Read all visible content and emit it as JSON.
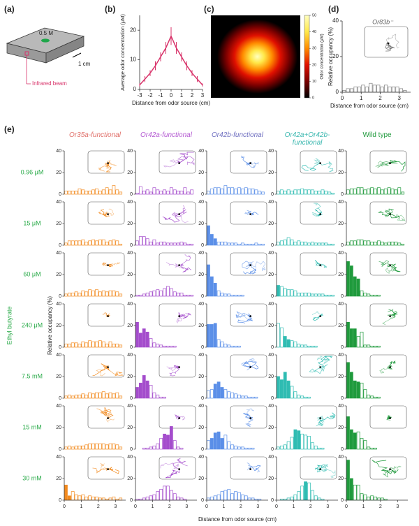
{
  "diagram": {
    "panel": "(a)",
    "spot_label": "0.5 M",
    "scale_label": "1 cm",
    "beam_label": "Infrared beam"
  },
  "chart_data": [
    {
      "type": "line",
      "panel": "(b)",
      "color": "#d8336a",
      "x": [
        -3,
        -2.5,
        -2,
        -1.5,
        -1,
        -0.5,
        0,
        0.5,
        1,
        1.5,
        2,
        2.5,
        3
      ],
      "values": [
        1.5,
        3.5,
        5.5,
        8,
        11,
        14,
        18,
        14,
        11,
        8,
        5.5,
        3.5,
        1.5
      ],
      "errors": [
        0.5,
        1,
        1,
        1.5,
        1.5,
        2,
        3,
        2,
        1.5,
        1.5,
        1,
        1,
        0.5
      ],
      "xlim": [
        -3,
        3
      ],
      "xticks": [
        -3,
        -2,
        -1,
        0,
        1,
        2,
        3
      ],
      "ylim": [
        0,
        25
      ],
      "yticks": [
        0,
        10,
        20
      ],
      "xlabel": "Distance from odor source (cm)",
      "ylabel": "Average odor concentration (μM)"
    },
    {
      "type": "heatmap",
      "panel": "(c)",
      "colors": [
        "#000000",
        "#7a0000",
        "#e01000",
        "#ff8c00",
        "#ffe84a",
        "#ffffc0"
      ],
      "zlim": [
        0,
        50
      ],
      "zticks": [
        0,
        10,
        20,
        30,
        40,
        50
      ],
      "colorbar_label": "Odor concentration (μM)"
    },
    {
      "type": "histogram",
      "panel": "(d)",
      "title": "Or83b⁻",
      "color": "#8c8c8c",
      "bins": [
        0,
        0.2,
        0.4,
        0.6,
        0.8,
        1,
        1.2,
        1.4,
        1.6,
        1.8,
        2,
        2.2,
        2.4,
        2.6,
        2.8,
        3,
        3.2,
        3.4
      ],
      "counts": [
        1,
        2,
        2,
        3,
        3,
        4,
        3,
        5,
        4,
        4,
        3,
        4,
        3,
        3,
        3,
        2,
        1
      ],
      "xlim": [
        0,
        3.6
      ],
      "xticks": [
        0,
        1,
        2,
        3
      ],
      "ylim": [
        0,
        40
      ],
      "yticks": [
        0,
        20,
        40
      ],
      "xlabel": "Distance from odor source (cm)",
      "ylabel": "Relative occupancy (%)"
    },
    {
      "type": "histogram-grid",
      "panel": "(e)",
      "group_label": "Ethyl butyrate",
      "label_color": "#2bab4a",
      "row_labels": [
        "0.96 μM",
        "15 μM",
        "60 μM",
        "240 μM",
        "7.5 mM",
        "15 mM",
        "30 mM"
      ],
      "bins": [
        0,
        0.2,
        0.4,
        0.6,
        0.8,
        1,
        1.2,
        1.4,
        1.6,
        1.8,
        2,
        2.2,
        2.4,
        2.6,
        2.8,
        3,
        3.2,
        3.4
      ],
      "xlim": [
        0,
        3.6
      ],
      "xticks": [
        0,
        1,
        2,
        3
      ],
      "ylim": [
        0,
        40
      ],
      "yticks": [
        0,
        20,
        40
      ],
      "xlabel": "Distance from odor source (cm)",
      "ylabel": "Relative occupancy (%)",
      "columns": [
        {
          "title": "Or35a-functional",
          "title_color": "#e0706a",
          "color": "#f28a1e",
          "counts": [
            [
              3,
              3,
              3,
              3,
              5,
              4,
              3,
              3,
              4,
              5,
              3,
              4,
              6,
              4,
              8,
              4,
              2
            ],
            [
              2,
              4,
              4,
              4,
              4,
              5,
              3,
              4,
              5,
              4,
              5,
              5,
              3,
              4,
              5,
              4,
              1
            ],
            [
              2,
              3,
              3,
              4,
              3,
              5,
              4,
              6,
              5,
              6,
              4,
              5,
              4,
              5,
              5,
              4,
              2
            ],
            [
              3,
              3,
              4,
              4,
              3,
              5,
              4,
              6,
              5,
              5,
              6,
              5,
              3,
              5,
              3,
              3,
              2
            ],
            [
              2,
              3,
              2,
              3,
              3,
              4,
              3,
              5,
              4,
              5,
              5,
              6,
              4,
              5,
              4,
              5,
              2
            ],
            [
              2,
              3,
              2,
              3,
              3,
              3,
              4,
              5,
              5,
              5,
              5,
              5,
              4,
              5,
              5,
              4,
              2
            ],
            [
              14,
              4,
              8,
              5,
              4,
              5,
              3,
              4,
              3,
              3,
              2,
              2,
              1,
              2,
              3,
              1,
              2
            ]
          ],
          "filled": [
            [],
            [],
            [],
            [],
            [],
            [],
            [
              0,
              1
            ]
          ]
        },
        {
          "title": "Or42a-functional",
          "title_color": "#b45ad2",
          "color": "#a44ccc",
          "counts": [
            [
              1,
              7,
              3,
              4,
              2,
              6,
              4,
              3,
              4,
              3,
              6,
              4,
              3,
              3,
              6,
              2,
              4
            ],
            [
              4,
              8,
              8,
              6,
              3,
              5,
              2,
              3,
              3,
              2,
              2,
              2,
              2,
              3,
              2,
              1,
              1
            ],
            [
              1,
              1,
              2,
              3,
              4,
              5,
              6,
              5,
              7,
              9,
              7,
              4,
              3,
              3,
              1,
              1,
              1
            ],
            [
              23,
              13,
              17,
              14,
              8,
              4,
              3,
              2,
              1,
              1,
              1,
              1,
              0,
              0,
              0,
              0,
              0
            ],
            [
              10,
              14,
              21,
              16,
              12,
              5,
              3,
              1,
              1,
              0,
              0,
              0,
              0,
              0,
              0,
              0,
              0
            ],
            [
              0,
              0,
              1,
              1,
              2,
              3,
              5,
              10,
              14,
              13,
              21,
              8,
              2,
              1,
              0,
              0,
              0
            ],
            [
              1,
              1,
              2,
              3,
              4,
              5,
              8,
              10,
              13,
              13,
              9,
              6,
              3,
              2,
              1,
              0,
              0
            ]
          ],
          "filled": [
            [],
            [],
            [],
            [
              0,
              1,
              2,
              3
            ],
            [
              0,
              1,
              2,
              3
            ],
            [
              8,
              9,
              10
            ],
            []
          ]
        },
        {
          "title": "Or42b-functional",
          "title_color": "#6f6fc0",
          "color": "#5b8fe8",
          "counts": [
            [
              3,
              5,
              6,
              6,
              5,
              8,
              6,
              6,
              5,
              6,
              5,
              6,
              5,
              5,
              4,
              3,
              2
            ],
            [
              18,
              10,
              6,
              3,
              3,
              3,
              2,
              2,
              2,
              1,
              2,
              1,
              1,
              1,
              2,
              1,
              1
            ],
            [
              29,
              18,
              12,
              5,
              3,
              2,
              2,
              1,
              1,
              1,
              1,
              0,
              0,
              0,
              0,
              0,
              0
            ],
            [
              21,
              21,
              22,
              7,
              5,
              3,
              2,
              1,
              1,
              1,
              0,
              0,
              0,
              0,
              0,
              0,
              0
            ],
            [
              7,
              8,
              13,
              15,
              10,
              8,
              6,
              5,
              4,
              3,
              2,
              2,
              1,
              1,
              1,
              0,
              0
            ],
            [
              8,
              10,
              15,
              16,
              10,
              13,
              7,
              4,
              3,
              2,
              2,
              1,
              1,
              1,
              0,
              0,
              0
            ],
            [
              2,
              3,
              4,
              5,
              8,
              9,
              10,
              6,
              8,
              7,
              5,
              4,
              2,
              2,
              1,
              1,
              0
            ]
          ],
          "filled": [
            [],
            [
              0,
              1,
              2
            ],
            [
              0,
              1,
              2
            ],
            [
              0,
              1,
              2
            ],
            [
              2,
              3,
              4
            ],
            [
              1,
              2,
              3,
              4
            ],
            []
          ]
        },
        {
          "title": "Or42a+Or42b-functional",
          "title_color": "#3cb8b0",
          "color": "#2fbcb2",
          "counts": [
            [
              3,
              4,
              3,
              4,
              3,
              4,
              4,
              5,
              4,
              4,
              4,
              3,
              3,
              4,
              3,
              2,
              1
            ],
            [
              3,
              4,
              5,
              7,
              5,
              3,
              4,
              3,
              3,
              2,
              3,
              2,
              2,
              2,
              2,
              1,
              1
            ],
            [
              10,
              9,
              7,
              6,
              6,
              5,
              3,
              3,
              3,
              3,
              2,
              2,
              2,
              2,
              1,
              1,
              1
            ],
            [
              22,
              18,
              10,
              7,
              6,
              5,
              3,
              2,
              2,
              1,
              1,
              1,
              0,
              0,
              0,
              0,
              0
            ],
            [
              20,
              17,
              24,
              16,
              11,
              6,
              3,
              2,
              1,
              1,
              0,
              0,
              0,
              0,
              0,
              0,
              0
            ],
            [
              2,
              3,
              4,
              7,
              11,
              18,
              17,
              14,
              13,
              12,
              6,
              3,
              1,
              1,
              0,
              0,
              0
            ],
            [
              0,
              1,
              1,
              2,
              3,
              5,
              8,
              13,
              17,
              16,
              9,
              4,
              2,
              1,
              0,
              0,
              0
            ]
          ],
          "filled": [
            [],
            [],
            [
              0
            ],
            [
              2,
              3
            ],
            [
              0,
              1,
              2,
              3
            ],
            [
              5,
              6
            ],
            [
              8
            ]
          ]
        },
        {
          "title": "Wild type",
          "title_color": "#1f9a3c",
          "color": "#1f9a3c",
          "counts": [
            [
              4,
              5,
              5,
              6,
              6,
              4,
              5,
              6,
              5,
              6,
              4,
              5,
              6,
              5,
              4,
              6,
              2
            ],
            [
              3,
              4,
              4,
              5,
              5,
              4,
              4,
              3,
              3,
              4,
              3,
              2,
              3,
              3,
              3,
              2,
              1
            ],
            [
              32,
              28,
              18,
              16,
              5,
              3,
              2,
              1,
              1,
              1,
              0,
              0,
              0,
              0,
              0,
              0,
              0
            ],
            [
              23,
              17,
              17,
              10,
              14,
              2,
              2,
              1,
              1,
              1,
              0,
              0,
              0,
              0,
              0,
              0,
              0
            ],
            [
              33,
              24,
              16,
              15,
              14,
              8,
              3,
              2,
              1,
              1,
              0,
              0,
              0,
              0,
              0,
              0,
              0
            ],
            [
              30,
              18,
              15,
              16,
              10,
              8,
              2,
              1,
              1,
              0,
              0,
              0,
              0,
              0,
              0,
              0,
              0
            ],
            [
              37,
              20,
              14,
              14,
              6,
              5,
              3,
              4,
              3,
              2,
              2,
              1,
              0,
              0,
              0,
              0,
              0
            ]
          ],
          "filled": [
            [],
            [],
            [
              0,
              1,
              2,
              3
            ],
            [
              0,
              1,
              2
            ],
            [
              0,
              1,
              2,
              3
            ],
            [
              0,
              1,
              2
            ],
            [
              0,
              1
            ]
          ]
        }
      ]
    }
  ]
}
